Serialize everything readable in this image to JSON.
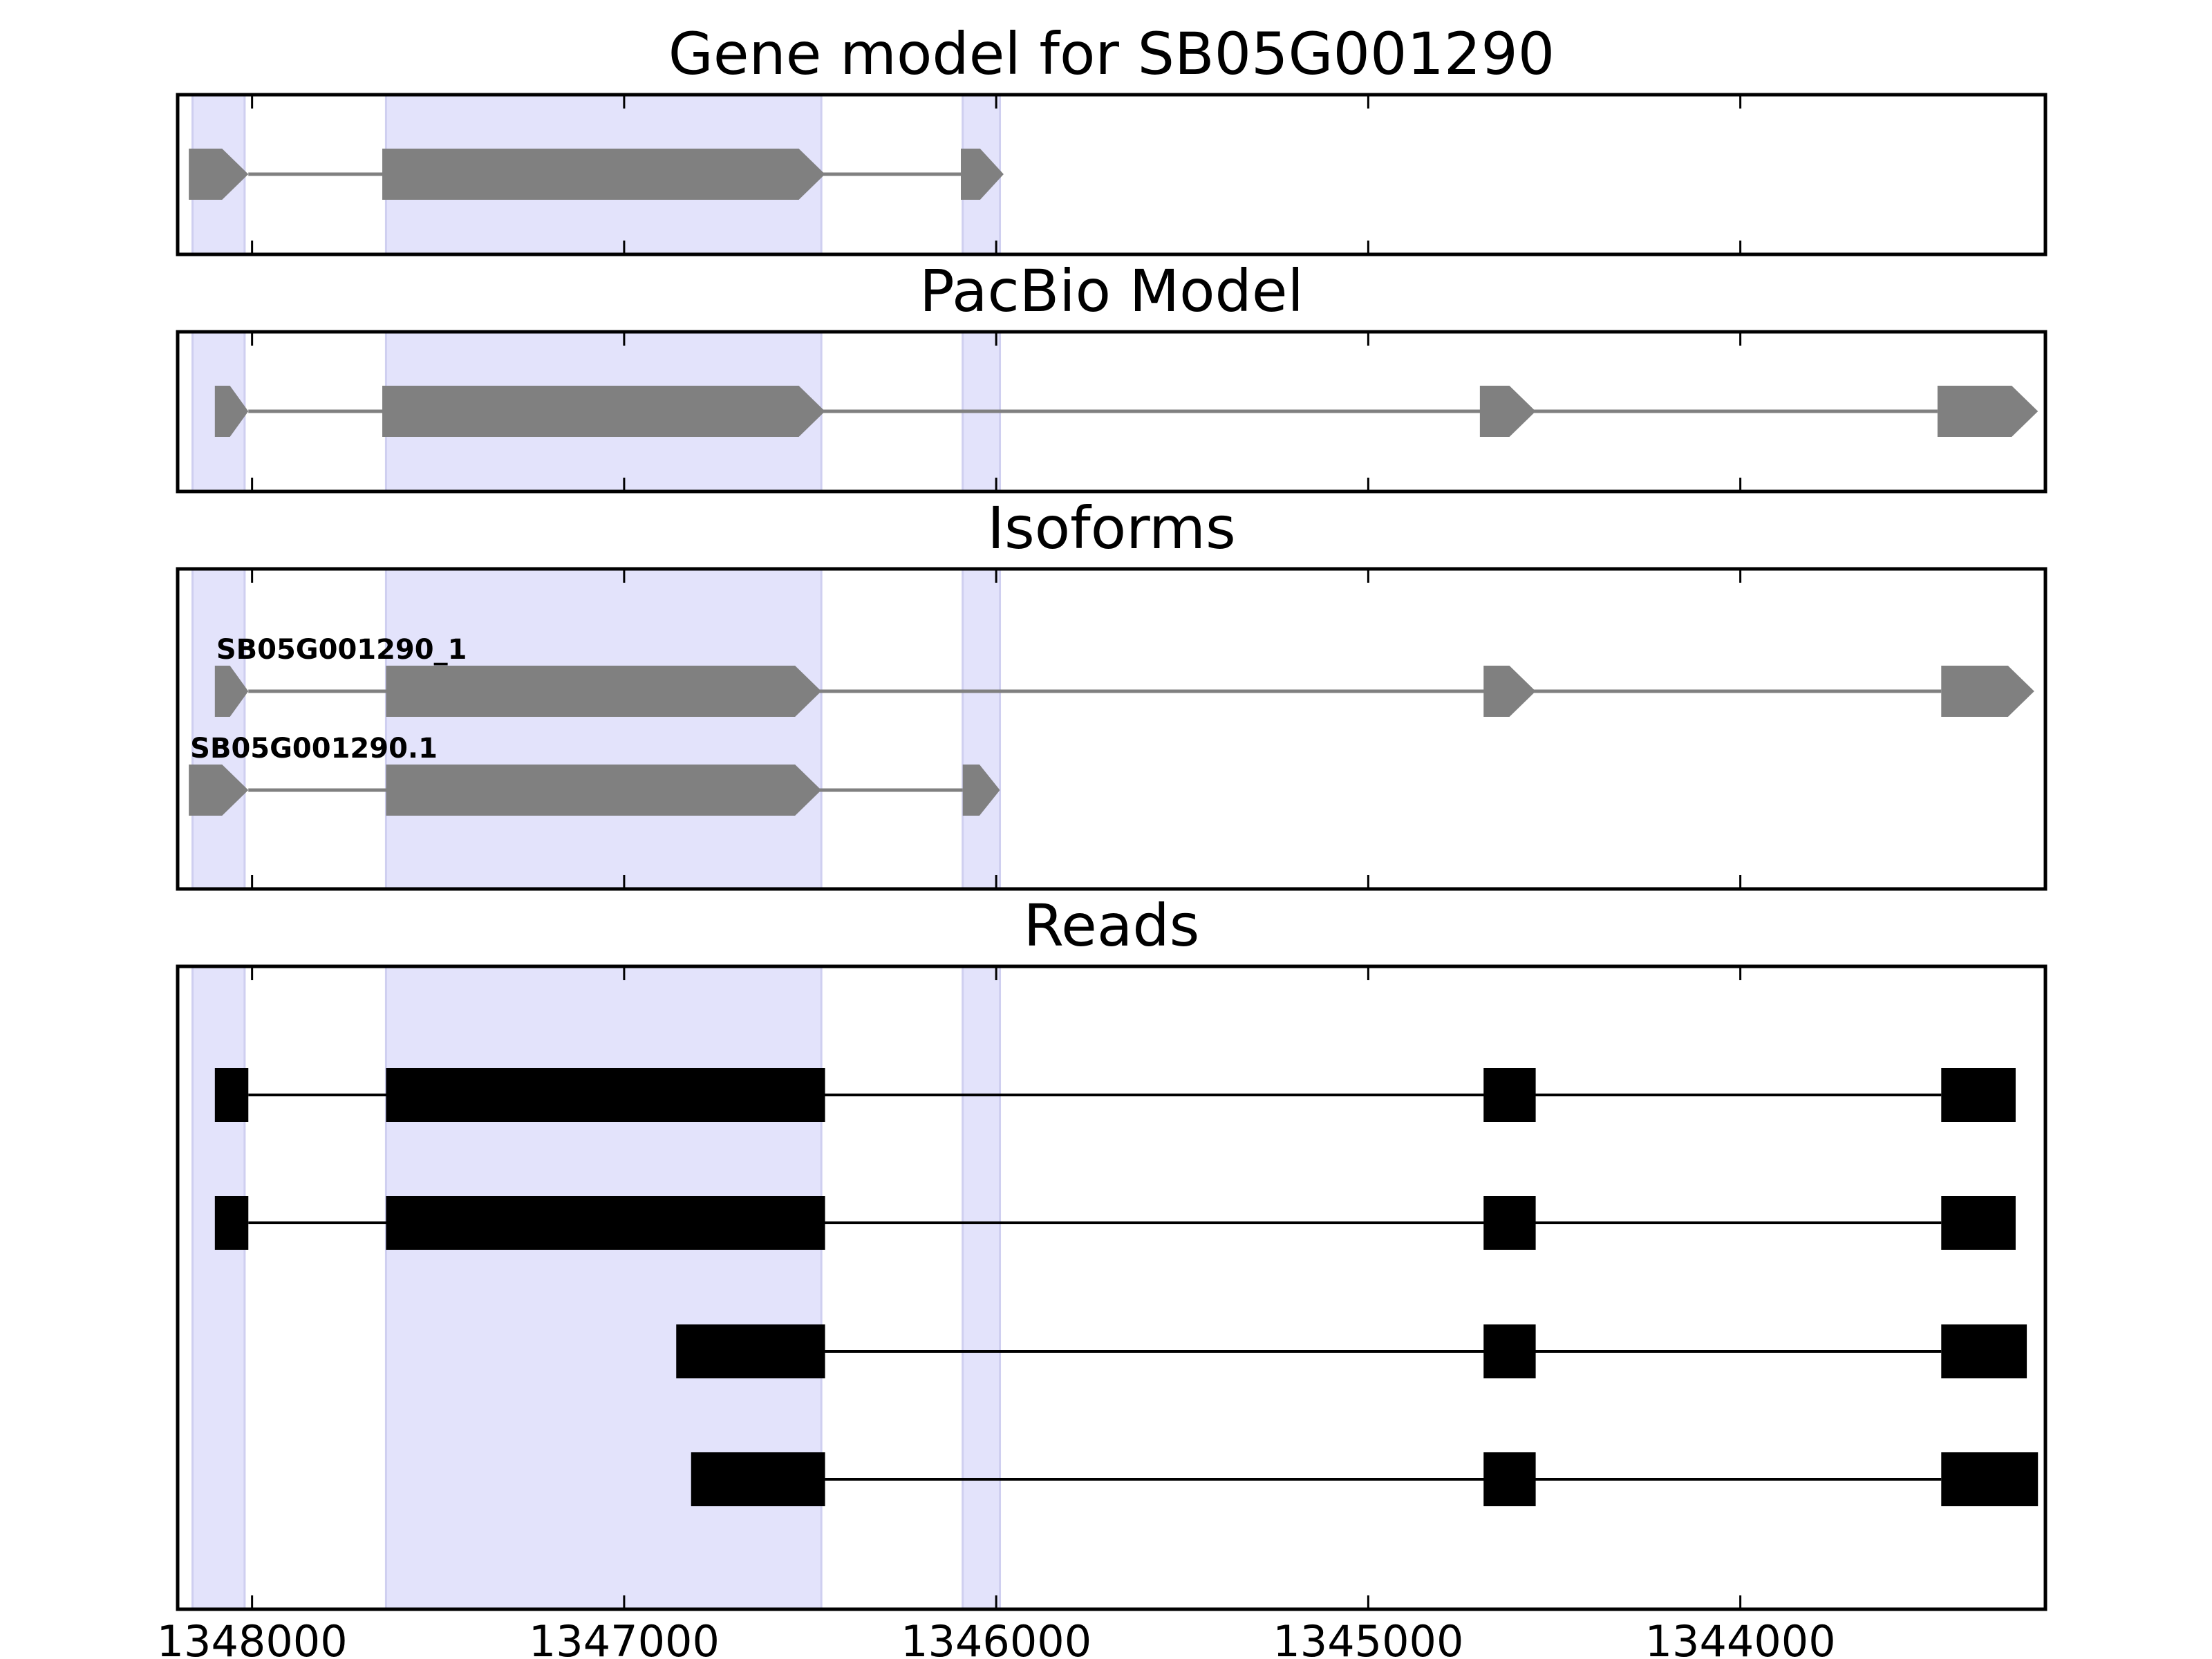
{
  "chart_data": {
    "type": "gene-structure",
    "x_axis": {
      "ticks": [
        1348000,
        1347000,
        1346000,
        1345000,
        1344000
      ],
      "tick_labels": [
        "1348000",
        "1347000",
        "1346000",
        "1345000",
        "1344000"
      ],
      "xlim": [
        1348200,
        1343180
      ],
      "direction": "reversed"
    },
    "highlight_color": "#e3e3fb",
    "highlight_regions": [
      [
        1348160,
        1348020
      ],
      [
        1347640,
        1346470
      ],
      [
        1346090,
        1345990
      ]
    ],
    "panels": [
      {
        "name": "gene-model",
        "title": "Gene model for SB05G001290",
        "color": "#808080",
        "track_style": "arrow",
        "tracks": [
          {
            "label": "",
            "exons": [
              [
                1348170,
                1348010
              ],
              [
                1347650,
                1346460
              ],
              [
                1346095,
                1345980
              ]
            ]
          }
        ]
      },
      {
        "name": "pacbio-model",
        "title": "PacBio Model",
        "color": "#808080",
        "track_style": "arrow",
        "tracks": [
          {
            "label": "",
            "exons": [
              [
                1348100,
                1348010
              ],
              [
                1347650,
                1346460
              ],
              [
                1344700,
                1344550
              ],
              [
                1343470,
                1343200
              ]
            ]
          }
        ]
      },
      {
        "name": "isoforms",
        "title": "Isoforms",
        "color": "#808080",
        "track_style": "arrow",
        "tracks": [
          {
            "label": "SB05G001290_1",
            "exons": [
              [
                1348100,
                1348010
              ],
              [
                1347640,
                1346470
              ],
              [
                1344690,
                1344550
              ],
              [
                1343460,
                1343210
              ]
            ]
          },
          {
            "label": "SB05G001290.1",
            "exons": [
              [
                1348170,
                1348010
              ],
              [
                1347640,
                1346470
              ],
              [
                1346090,
                1345990
              ]
            ]
          }
        ]
      },
      {
        "name": "reads",
        "title": "Reads",
        "color": "#000000",
        "track_style": "block",
        "tracks": [
          {
            "label": "",
            "exons": [
              [
                1348100,
                1348010
              ],
              [
                1347640,
                1346460
              ],
              [
                1344690,
                1344550
              ],
              [
                1343460,
                1343260
              ]
            ]
          },
          {
            "label": "",
            "exons": [
              [
                1348100,
                1348010
              ],
              [
                1347640,
                1346460
              ],
              [
                1344690,
                1344550
              ],
              [
                1343460,
                1343260
              ]
            ]
          },
          {
            "label": "",
            "exons": [
              [
                1346860,
                1346460
              ],
              [
                1344690,
                1344550
              ],
              [
                1343460,
                1343230
              ]
            ]
          },
          {
            "label": "",
            "exons": [
              [
                1346820,
                1346460
              ],
              [
                1344690,
                1344550
              ],
              [
                1343460,
                1343200
              ]
            ]
          }
        ]
      }
    ]
  }
}
